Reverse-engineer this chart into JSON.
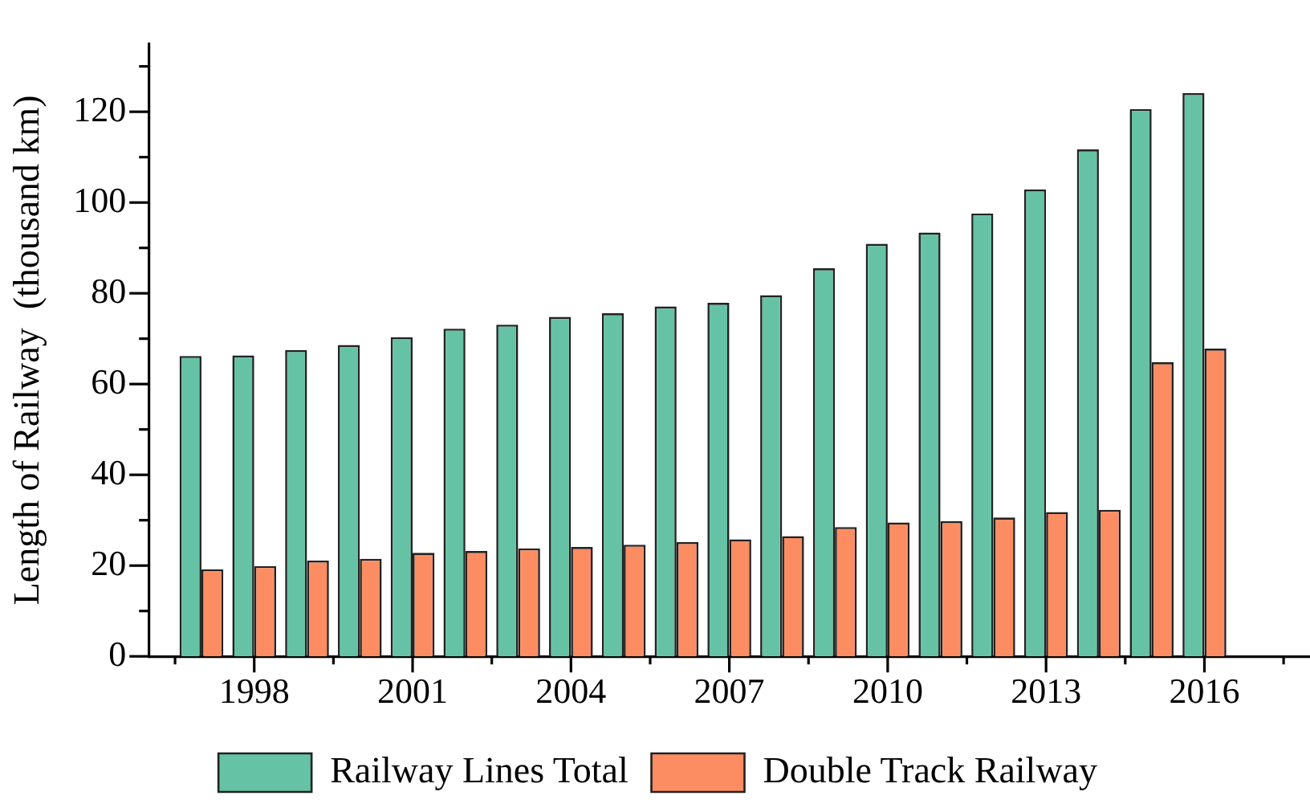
{
  "chart_data": {
    "type": "bar",
    "ylabel": "Length of Railway  (thousand km)",
    "x": [
      1997,
      1998,
      1999,
      2000,
      2001,
      2002,
      2003,
      2004,
      2005,
      2006,
      2007,
      2008,
      2009,
      2010,
      2011,
      2012,
      2013,
      2014,
      2015,
      2016
    ],
    "series": [
      {
        "name": "Railway Lines Total",
        "color": "#66c2a5",
        "values": [
          66.2,
          66.3,
          67.5,
          68.6,
          70.3,
          72.2,
          73.1,
          74.8,
          75.6,
          77.1,
          77.9,
          79.6,
          85.5,
          90.9,
          93.4,
          97.6,
          102.9,
          111.7,
          120.6,
          124.1
        ]
      },
      {
        "name": "Double Track Railway",
        "color": "#fc8d62",
        "values": [
          19.2,
          19.9,
          21.1,
          21.5,
          22.8,
          23.2,
          23.8,
          24.1,
          24.6,
          25.2,
          25.8,
          26.5,
          28.5,
          29.5,
          29.8,
          30.6,
          31.8,
          32.3,
          64.8,
          67.8
        ]
      }
    ],
    "xlim": [
      1996,
      2018
    ],
    "xticks": [
      {
        "value": 1996.5,
        "label": null
      },
      1998,
      {
        "value": 1999.5,
        "label": null
      },
      2001,
      {
        "value": 2002.5,
        "label": null
      },
      2004,
      {
        "value": 2005.5,
        "label": null
      },
      2007,
      {
        "value": 2008.5,
        "label": null
      },
      2010,
      {
        "value": 2011.5,
        "label": null
      },
      2013,
      {
        "value": 2014.5,
        "label": null
      },
      2016,
      {
        "value": 2017.5,
        "label": null
      }
    ],
    "ylim": [
      0,
      135
    ],
    "yticks": [
      0,
      {
        "value": 10,
        "label": null
      },
      20,
      {
        "value": 30,
        "label": null
      },
      40,
      {
        "value": 50,
        "label": null
      },
      60,
      {
        "value": 70,
        "label": null
      },
      80,
      {
        "value": 90,
        "label": null
      },
      100,
      {
        "value": 110,
        "label": null
      },
      120,
      {
        "value": 130,
        "label": null
      }
    ],
    "grid": false,
    "legend": "bottom"
  }
}
